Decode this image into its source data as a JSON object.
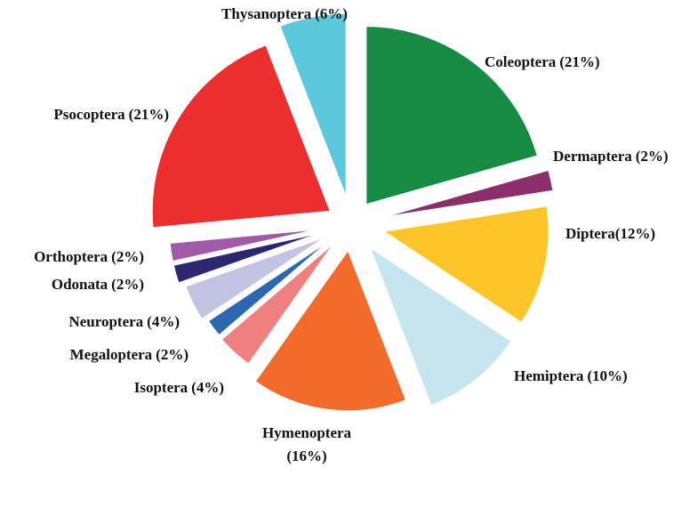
{
  "chart_data": {
    "type": "pie",
    "categories": [
      "Coleoptera",
      "Dermaptera",
      "Diptera",
      "Hemiptera",
      "Hymenoptera",
      "Isoptera",
      "Megaloptera",
      "Neuroptera",
      "Odonata",
      "Orthoptera",
      "Psocoptera",
      "Thysanoptera"
    ],
    "values": [
      21,
      2,
      12,
      10,
      16,
      4,
      2,
      4,
      2,
      2,
      21,
      6
    ],
    "value_labels": [
      "(21%)",
      "(2%)",
      "(12%)",
      "(10%)",
      "(16%)",
      "(4%)",
      "(2%)",
      "(4%)",
      "(2%)",
      "(2%)",
      "(21%)",
      "(6%)"
    ],
    "colors": [
      "#178a44",
      "#8b2f6b",
      "#fcc62a",
      "#c5e5ef",
      "#f26b2a",
      "#f08080",
      "#2e67b1",
      "#c2c2e2",
      "#2b2870",
      "#a05aa8",
      "#ec2e2e",
      "#5bc8dc"
    ]
  }
}
